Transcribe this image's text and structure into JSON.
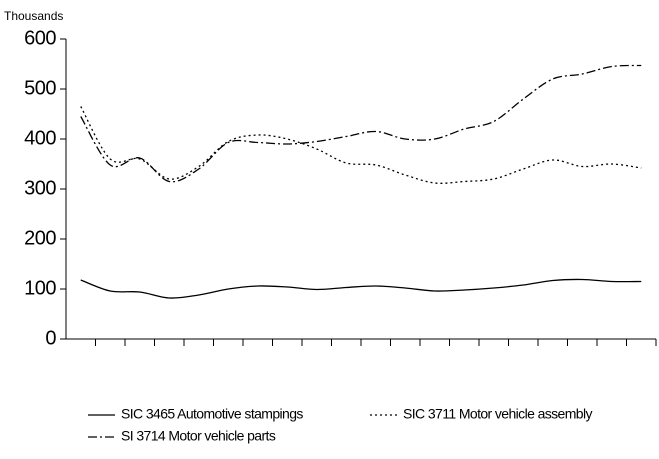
{
  "chart_data": {
    "type": "line",
    "y_unit_label": "Thousands",
    "categories": [
      null,
      null,
      null,
      null,
      null,
      null,
      null,
      null,
      null,
      null,
      null,
      null,
      null,
      null,
      null,
      null,
      null,
      null,
      null,
      null
    ],
    "ylim": [
      0,
      600
    ],
    "yticks": [
      0,
      100,
      200,
      300,
      400,
      500,
      600
    ],
    "series": [
      {
        "name": "SIC 3465 Automotive stampings",
        "color": "#000000",
        "dash": "solid",
        "values": [
          118,
          96,
          94,
          82,
          88,
          100,
          106,
          104,
          99,
          103,
          106,
          102,
          96,
          98,
          102,
          108,
          117,
          119,
          115,
          115
        ]
      },
      {
        "name": "SIC 3711 Motor vehicle assembly",
        "color": "#000000",
        "dash": "dotted",
        "values": [
          465,
          360,
          360,
          320,
          345,
          395,
          408,
          400,
          380,
          352,
          348,
          328,
          312,
          315,
          320,
          340,
          358,
          345,
          350,
          342
        ]
      },
      {
        "name": "SI 3714 Motor vehicle parts",
        "color": "#000000",
        "dash": "dashdot",
        "values": [
          445,
          348,
          362,
          315,
          340,
          393,
          393,
          390,
          395,
          405,
          415,
          400,
          400,
          420,
          435,
          480,
          520,
          530,
          545,
          547
        ]
      }
    ]
  }
}
